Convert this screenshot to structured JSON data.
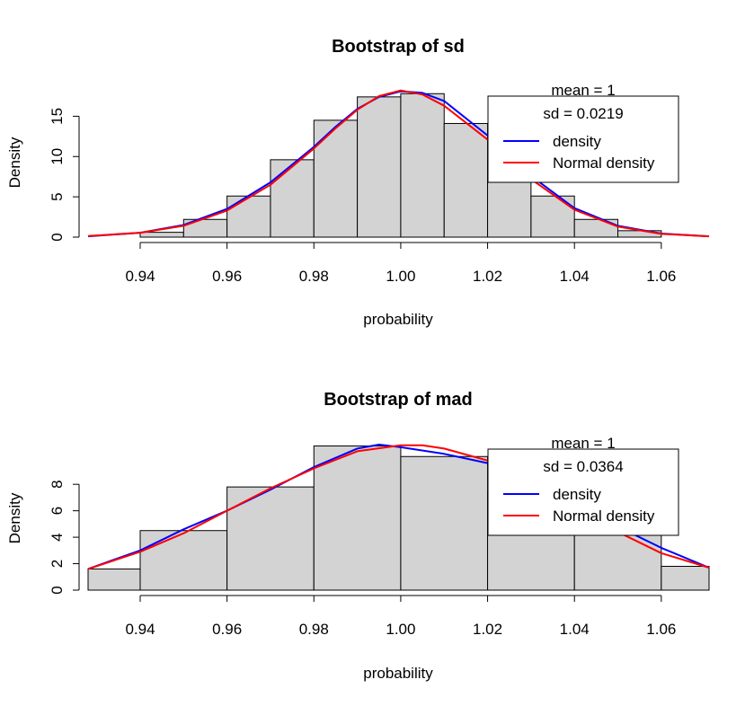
{
  "chart_data": [
    {
      "type": "bar",
      "title": "Bootstrap of sd",
      "xlabel": "probability",
      "ylabel": "Density",
      "xlim": [
        0.928,
        1.071
      ],
      "ylim": [
        0,
        18.5
      ],
      "x_ticks": [
        "0.94",
        "0.96",
        "0.98",
        "1.00",
        "1.02",
        "1.04",
        "1.06"
      ],
      "y_ticks": [
        "0",
        "5",
        "10",
        "15"
      ],
      "bins": [
        {
          "from": 0.94,
          "to": 0.95,
          "value": 0.6
        },
        {
          "from": 0.95,
          "to": 0.96,
          "value": 2.2
        },
        {
          "from": 0.96,
          "to": 0.97,
          "value": 5.1
        },
        {
          "from": 0.97,
          "to": 0.98,
          "value": 9.6
        },
        {
          "from": 0.98,
          "to": 0.99,
          "value": 14.5
        },
        {
          "from": 0.99,
          "to": 1.0,
          "value": 17.4
        },
        {
          "from": 1.0,
          "to": 1.01,
          "value": 17.8
        },
        {
          "from": 1.01,
          "to": 1.02,
          "value": 14.1
        },
        {
          "from": 1.02,
          "to": 1.03,
          "value": 9.6
        },
        {
          "from": 1.03,
          "to": 1.04,
          "value": 5.1
        },
        {
          "from": 1.04,
          "to": 1.05,
          "value": 2.2
        },
        {
          "from": 1.05,
          "to": 1.06,
          "value": 0.8
        }
      ],
      "series": [
        {
          "name": "density",
          "color": "#0000ff",
          "x": [
            0.928,
            0.94,
            0.95,
            0.96,
            0.97,
            0.98,
            0.985,
            0.99,
            0.995,
            1.0,
            1.005,
            1.01,
            1.02,
            1.03,
            1.04,
            1.05,
            1.06,
            1.071
          ],
          "y": [
            0.1,
            0.55,
            1.5,
            3.5,
            6.8,
            11.2,
            13.7,
            15.9,
            17.4,
            18.1,
            17.9,
            16.9,
            12.6,
            7.6,
            3.6,
            1.4,
            0.45,
            0.1
          ]
        },
        {
          "name": "Normal density",
          "color": "#ff0000",
          "x": [
            0.928,
            0.94,
            0.95,
            0.96,
            0.97,
            0.98,
            0.985,
            0.99,
            0.995,
            1.0,
            1.005,
            1.01,
            1.02,
            1.03,
            1.04,
            1.05,
            1.06,
            1.071
          ],
          "y": [
            0.15,
            0.55,
            1.4,
            3.3,
            6.5,
            11.0,
            13.5,
            15.8,
            17.5,
            18.2,
            17.7,
            16.3,
            12.1,
            7.2,
            3.4,
            1.3,
            0.4,
            0.1
          ]
        }
      ],
      "legend": {
        "position": "top-right",
        "header": "mean = 1",
        "subheader": "sd = 0.0219",
        "entries": [
          "density",
          "Normal density"
        ]
      }
    },
    {
      "type": "bar",
      "title": "Bootstrap of mad",
      "xlabel": "probability",
      "ylabel": "Density",
      "xlim": [
        0.928,
        1.071
      ],
      "ylim": [
        0,
        11
      ],
      "x_ticks": [
        "0.94",
        "0.96",
        "0.98",
        "1.00",
        "1.02",
        "1.04",
        "1.06"
      ],
      "y_ticks": [
        "0",
        "2",
        "4",
        "6",
        "8"
      ],
      "bins": [
        {
          "from": 0.92,
          "to": 0.94,
          "value": 1.6
        },
        {
          "from": 0.94,
          "to": 0.96,
          "value": 4.5
        },
        {
          "from": 0.96,
          "to": 0.98,
          "value": 7.8
        },
        {
          "from": 0.98,
          "to": 1.0,
          "value": 10.9
        },
        {
          "from": 1.0,
          "to": 1.02,
          "value": 10.1
        },
        {
          "from": 1.02,
          "to": 1.04,
          "value": 7.5
        },
        {
          "from": 1.04,
          "to": 1.06,
          "value": 4.5
        },
        {
          "from": 1.06,
          "to": 1.08,
          "value": 1.8
        }
      ],
      "series": [
        {
          "name": "density",
          "color": "#0000ff",
          "x": [
            0.928,
            0.94,
            0.95,
            0.96,
            0.97,
            0.98,
            0.99,
            0.995,
            1.0,
            1.01,
            1.02,
            1.03,
            1.04,
            1.05,
            1.06,
            1.071
          ],
          "y": [
            1.6,
            3.0,
            4.6,
            6.0,
            7.6,
            9.3,
            10.7,
            11.0,
            10.8,
            10.3,
            9.6,
            8.2,
            6.5,
            4.8,
            3.2,
            1.7
          ]
        },
        {
          "name": "Normal density",
          "color": "#ff0000",
          "x": [
            0.928,
            0.94,
            0.95,
            0.96,
            0.97,
            0.98,
            0.99,
            1.0,
            1.005,
            1.01,
            1.02,
            1.03,
            1.04,
            1.05,
            1.06,
            1.071
          ],
          "y": [
            1.6,
            2.9,
            4.3,
            6.0,
            7.7,
            9.2,
            10.5,
            10.95,
            10.95,
            10.7,
            9.8,
            8.2,
            6.2,
            4.4,
            2.8,
            1.7
          ]
        }
      ],
      "legend": {
        "position": "top-right",
        "header": "mean = 1",
        "subheader": "sd = 0.0364",
        "entries": [
          "density",
          "Normal density"
        ]
      }
    }
  ],
  "colors": {
    "bar_fill": "#d3d3d3",
    "bar_stroke": "#000000"
  }
}
